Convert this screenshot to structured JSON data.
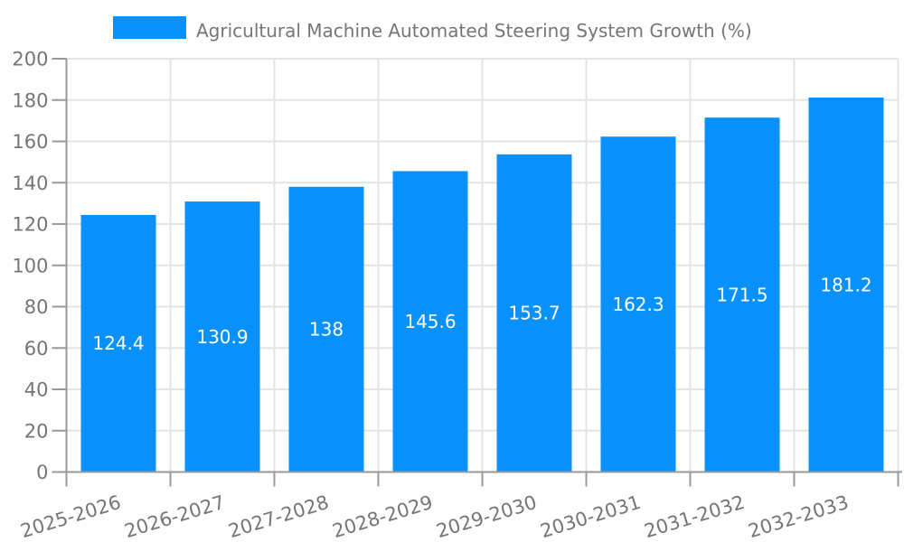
{
  "chart_data": {
    "type": "bar",
    "legend": "Agricultural Machine Automated Steering System Growth (%)",
    "legend_position": "top",
    "categories": [
      "2025-2026",
      "2026-2027",
      "2027-2028",
      "2028-2029",
      "2029-2030",
      "2030-2031",
      "2031-2032",
      "2032-2033"
    ],
    "values": [
      124.4,
      130.9,
      138,
      145.6,
      153.7,
      162.3,
      171.5,
      181.2
    ],
    "value_labels": [
      "124.4",
      "130.9",
      "138",
      "145.6",
      "153.7",
      "162.3",
      "171.5",
      "181.2"
    ],
    "xlabel": "",
    "ylabel": "",
    "ylim": [
      0,
      200
    ],
    "ytick_step": 20,
    "ytick_labels": [
      "0",
      "20",
      "40",
      "60",
      "80",
      "100",
      "120",
      "140",
      "160",
      "180",
      "200"
    ],
    "grid": true,
    "colors": {
      "bar": "#0991fb",
      "axis": "#999999",
      "grid": "#e3e3e3",
      "tick_text": "#757575",
      "value_text": "#ffffff",
      "background": "#ffffff"
    }
  }
}
